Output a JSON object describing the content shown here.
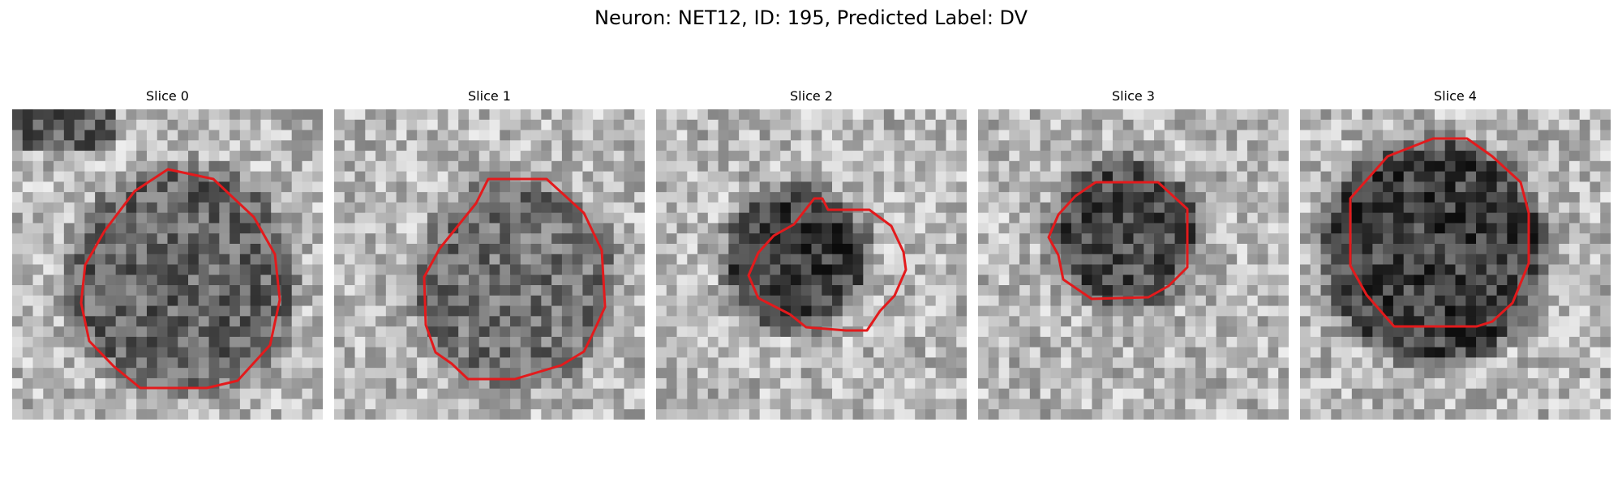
{
  "figure": {
    "title": "Neuron: NET12, ID: 195, Predicted Label: DV",
    "contour_color": "#e31a1c"
  },
  "panels": [
    {
      "title": "Slice 0"
    },
    {
      "title": "Slice 1"
    },
    {
      "title": "Slice 2"
    },
    {
      "title": "Slice 3"
    },
    {
      "title": "Slice 4"
    }
  ]
}
